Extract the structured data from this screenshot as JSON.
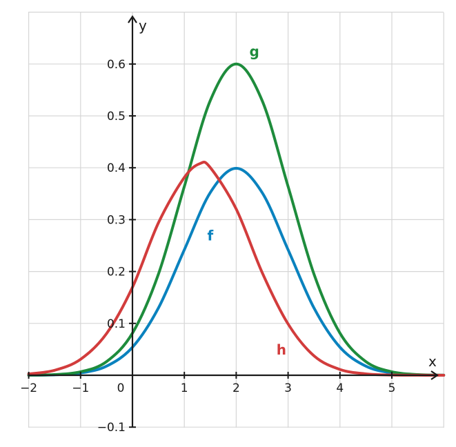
{
  "chart_data": {
    "type": "line",
    "title": "",
    "xlabel": "x",
    "ylabel": "y",
    "xlim": [
      -2,
      6
    ],
    "ylim": [
      -0.1,
      0.7
    ],
    "x_ticks": [
      -2,
      -1,
      0,
      1,
      2,
      3,
      4,
      5
    ],
    "x_tick_labels": [
      "−2",
      "−1",
      "0",
      "1",
      "2",
      "3",
      "4",
      "5"
    ],
    "y_ticks": [
      -0.1,
      0.1,
      0.2,
      0.3,
      0.4,
      0.5,
      0.6
    ],
    "y_tick_labels": [
      "−0.1",
      "0.1",
      "0.2",
      "0.3",
      "0.4",
      "0.5",
      "0.6"
    ],
    "grid": true,
    "series": [
      {
        "name": "f",
        "color": "#0a82be",
        "x": [
          -2,
          -1.5,
          -1,
          -0.5,
          0,
          0.5,
          1,
          1.5,
          2,
          2.5,
          3,
          3.5,
          4,
          4.5,
          5,
          5.5,
          6
        ],
        "y": [
          0.0001,
          0.0009,
          0.0044,
          0.0175,
          0.054,
          0.1295,
          0.242,
          0.3521,
          0.3989,
          0.3521,
          0.242,
          0.1295,
          0.054,
          0.0175,
          0.0044,
          0.0009,
          0.0001
        ]
      },
      {
        "name": "g",
        "color": "#1e8c3c",
        "x": [
          -2,
          -1.5,
          -1,
          -0.5,
          0,
          0.5,
          1,
          1.5,
          2,
          2.5,
          3,
          3.5,
          4,
          4.5,
          5,
          5.5,
          6
        ],
        "y": [
          0.0002,
          0.0013,
          0.0067,
          0.0263,
          0.0812,
          0.1947,
          0.3639,
          0.5295,
          0.6,
          0.5295,
          0.3639,
          0.1947,
          0.0812,
          0.0263,
          0.0067,
          0.0013,
          0.0002
        ]
      },
      {
        "name": "h",
        "color": "#d23c3c",
        "x": [
          -2,
          -1.5,
          -1,
          -0.5,
          0,
          0.5,
          1,
          1.3,
          1.5,
          2,
          2.5,
          3,
          3.5,
          4,
          4.5,
          5,
          5.5,
          6
        ],
        "y": [
          0.0025,
          0.0096,
          0.0308,
          0.0803,
          0.1695,
          0.2937,
          0.3813,
          0.408,
          0.4004,
          0.3205,
          0.1981,
          0.0989,
          0.0374,
          0.0112,
          0.0027,
          0.0005,
          0.0001,
          0.0
        ],
        "points": [
          [
            -2,
            0.0025
          ],
          [
            -1.5,
            0.0096
          ],
          [
            -1,
            0.0308
          ],
          [
            -0.5,
            0.0803
          ],
          [
            0,
            0.1695
          ],
          [
            0.5,
            0.2937
          ],
          [
            1,
            0.3813
          ],
          [
            1.3,
            0.408
          ],
          [
            1.5,
            0.4004
          ],
          [
            2,
            0.3205
          ],
          [
            2.5,
            0.1981
          ],
          [
            3,
            0.0989
          ],
          [
            3.5,
            0.0374
          ],
          [
            4,
            0.0112
          ],
          [
            4.5,
            0.0027
          ],
          [
            5,
            0.0005
          ],
          [
            5.5,
            0.0001
          ],
          [
            6,
            0.0
          ]
        ]
      }
    ],
    "annotations": [
      {
        "text": "g",
        "x": 2.35,
        "y": 0.615,
        "color": "#1e8c3c"
      },
      {
        "text": "f",
        "x": 1.5,
        "y": 0.26,
        "color": "#0a82be"
      },
      {
        "text": "h",
        "x": 2.87,
        "y": 0.04,
        "color": "#d23c3c"
      }
    ]
  }
}
